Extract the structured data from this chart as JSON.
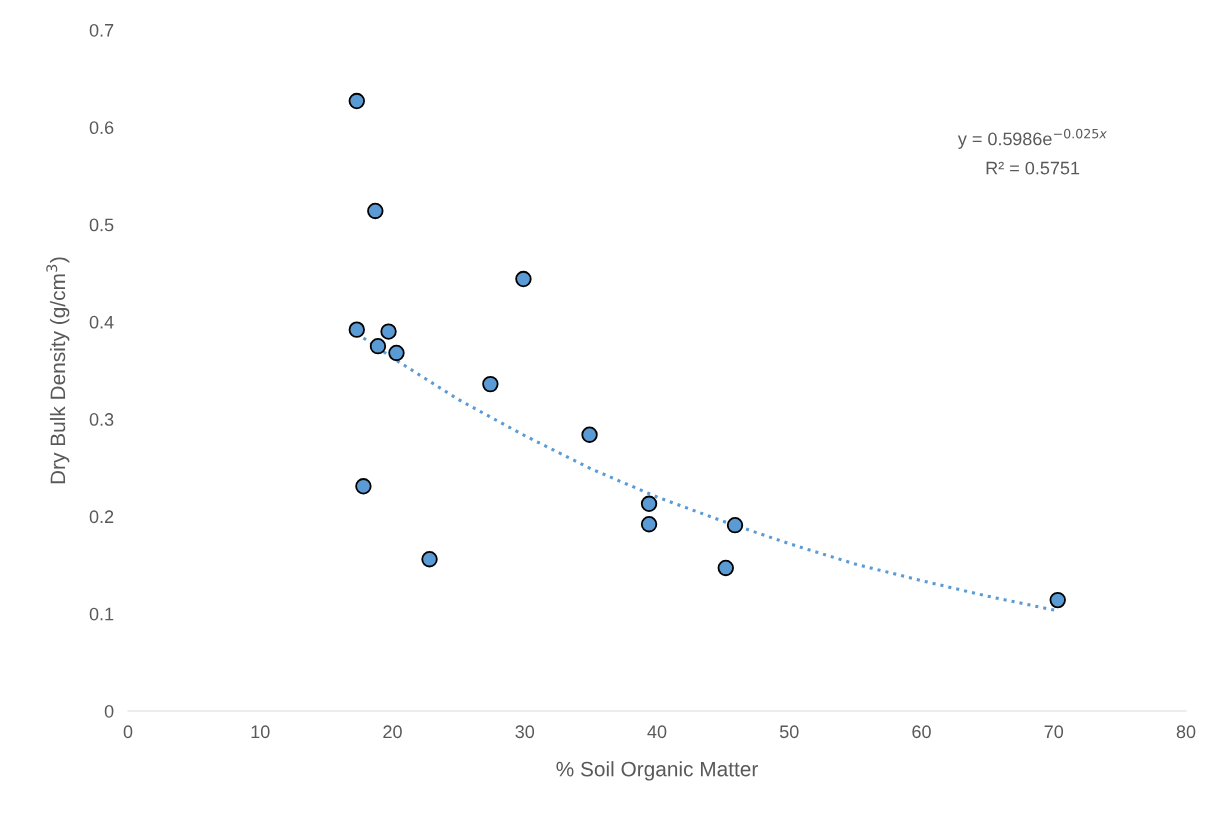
{
  "chart_data": {
    "type": "scatter",
    "xlabel": "% Soil Organic Matter",
    "ylabel": "Dry Bulk Density (g/cm$^{3}$)",
    "xlim": [
      0,
      80
    ],
    "xticks": [
      0,
      10,
      20,
      30,
      40,
      50,
      60,
      70,
      80
    ],
    "ylim": [
      0,
      0.7
    ],
    "yticks": [
      0,
      0.1,
      0.2,
      0.3,
      0.4,
      0.5,
      0.6,
      0.7
    ],
    "grid": false,
    "series": [
      {
        "marker": "circle",
        "color": "#5b9bd5",
        "x": [
          17.3,
          18.7,
          29.9,
          17.3,
          19.7,
          18.9,
          20.3,
          27.4,
          34.9,
          17.8,
          39.4,
          39.4,
          45.9,
          22.8,
          45.2,
          70.3
        ],
        "values": [
          0.627,
          0.514,
          0.444,
          0.392,
          0.39,
          0.375,
          0.368,
          0.336,
          0.284,
          0.231,
          0.213,
          0.192,
          0.191,
          0.156,
          0.147,
          0.114
        ]
      },
      {
        "type": "line",
        "color": "#5b9bd5",
        "line_style": "dotted",
        "x": [
          17.3,
          20,
          25,
          30,
          35,
          40,
          45,
          50,
          55,
          60,
          65,
          70.3
        ],
        "values": [
          0.388,
          0.363,
          0.32,
          0.283,
          0.249,
          0.22,
          0.195,
          0.172,
          0.151,
          0.134,
          0.118,
          0.103
        ]
      }
    ],
    "annotations": [
      "y = 0.5986e$^{−0.025x}$",
      "R² = 0.5751"
    ]
  }
}
